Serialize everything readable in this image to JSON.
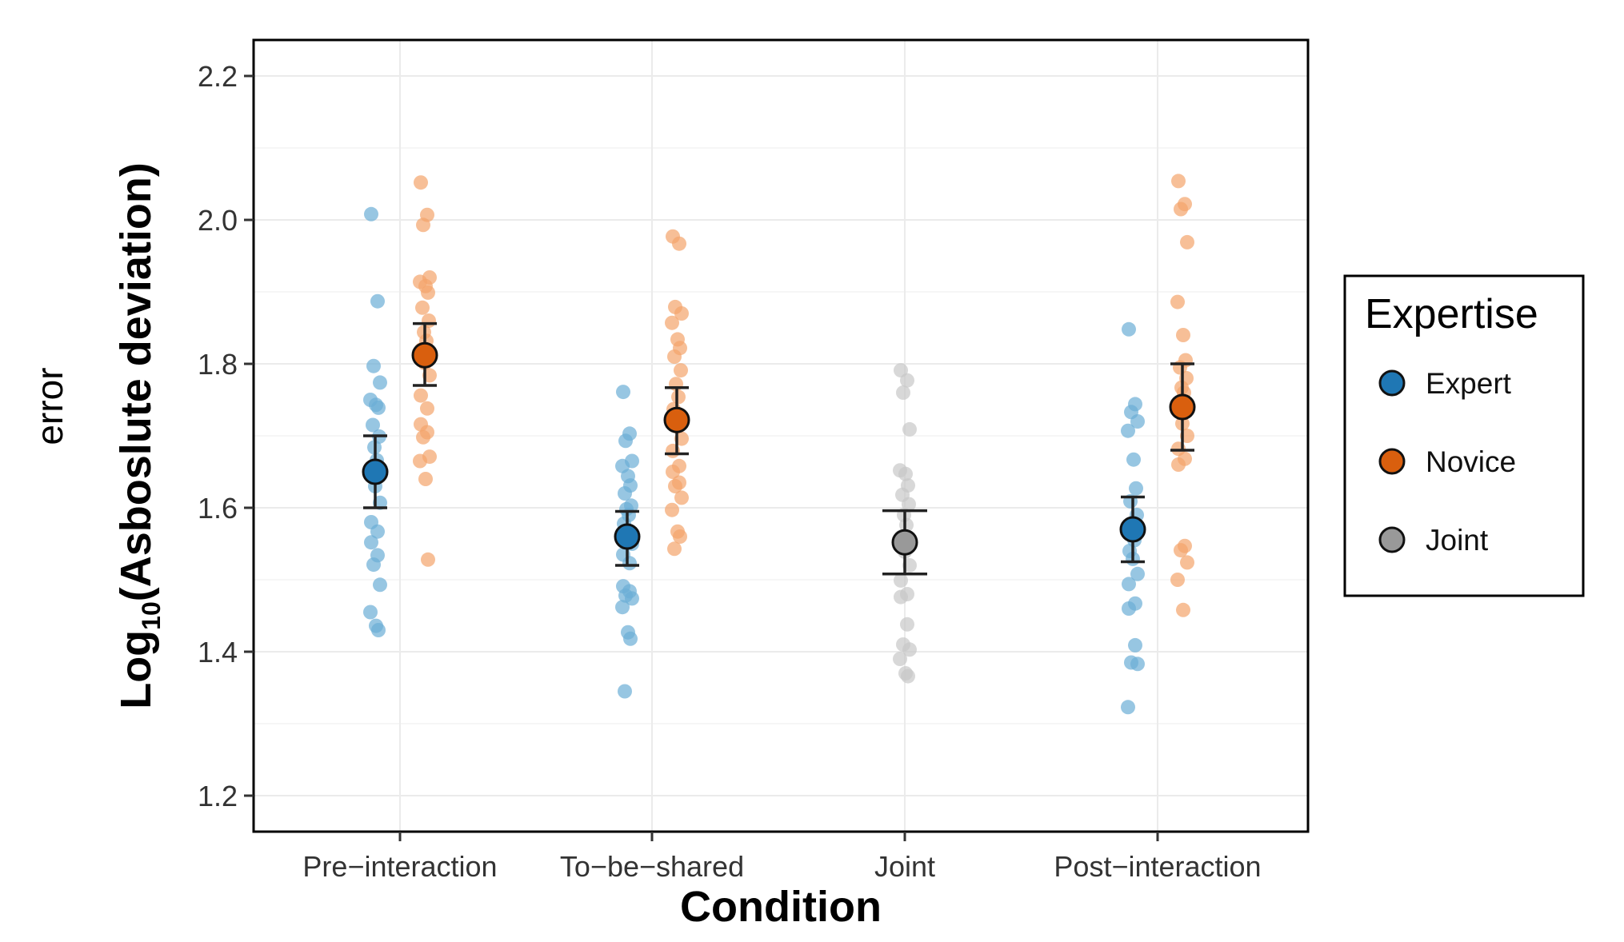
{
  "chart_data": {
    "type": "scatter",
    "outer_label": "error",
    "ylabel_main": "Log",
    "ylabel_sub": "10",
    "ylabel_rest": "(Asboslute deviation)",
    "xlabel": "Condition",
    "ylim": [
      1.15,
      2.25
    ],
    "yticks": [
      1.2,
      1.4,
      1.6,
      1.8,
      2.0,
      2.2
    ],
    "ytick_labels": [
      "1.2",
      "1.4",
      "1.6",
      "1.8",
      "2.0",
      "2.2"
    ],
    "categories": [
      "Pre−interaction",
      "To−be−shared",
      "Joint",
      "Post−interaction"
    ],
    "grid": true,
    "legend": {
      "title": "Expertise",
      "position": "right",
      "items": [
        {
          "label": "Expert",
          "color": "#1f77b4"
        },
        {
          "label": "Novice",
          "color": "#d95f0e"
        },
        {
          "label": "Joint",
          "color": "#999999"
        }
      ]
    },
    "series": [
      {
        "name": "Expert",
        "color": "#1f77b4",
        "point_color": "#6baed6",
        "summary": [
          {
            "category": 0,
            "mean": 1.65,
            "lower": 1.6,
            "upper": 1.7
          },
          {
            "category": 1,
            "mean": 1.56,
            "lower": 1.52,
            "upper": 1.595
          },
          {
            "category": 3,
            "mean": 1.57,
            "lower": 1.525,
            "upper": 1.615
          }
        ],
        "points": [
          {
            "category": 0,
            "values": [
              2.008,
              1.887,
              1.797,
              1.774,
              1.75,
              1.743,
              1.739,
              1.715,
              1.699,
              1.684,
              1.666,
              1.65,
              1.63,
              1.607,
              1.58,
              1.567,
              1.552,
              1.534,
              1.521,
              1.493,
              1.455,
              1.436,
              1.43
            ]
          },
          {
            "category": 1,
            "values": [
              1.761,
              1.703,
              1.693,
              1.665,
              1.658,
              1.644,
              1.631,
              1.62,
              1.603,
              1.598,
              1.59,
              1.578,
              1.56,
              1.55,
              1.535,
              1.523,
              1.491,
              1.484,
              1.478,
              1.474,
              1.462,
              1.427,
              1.418,
              1.345
            ]
          },
          {
            "category": 3,
            "values": [
              1.848,
              1.744,
              1.733,
              1.72,
              1.707,
              1.667,
              1.627,
              1.609,
              1.59,
              1.575,
              1.555,
              1.54,
              1.529,
              1.508,
              1.494,
              1.467,
              1.46,
              1.409,
              1.385,
              1.383,
              1.323
            ]
          }
        ]
      },
      {
        "name": "Novice",
        "color": "#d95f0e",
        "point_color": "#f4a46b",
        "summary": [
          {
            "category": 0,
            "mean": 1.812,
            "lower": 1.77,
            "upper": 1.856
          },
          {
            "category": 1,
            "mean": 1.722,
            "lower": 1.675,
            "upper": 1.767
          },
          {
            "category": 3,
            "mean": 1.74,
            "lower": 1.68,
            "upper": 1.8
          }
        ],
        "points": [
          {
            "category": 0,
            "values": [
              2.052,
              2.007,
              1.993,
              1.92,
              1.914,
              1.908,
              1.899,
              1.878,
              1.86,
              1.844,
              1.832,
              1.82,
              1.801,
              1.784,
              1.756,
              1.738,
              1.716,
              1.705,
              1.698,
              1.671,
              1.665,
              1.64,
              1.528
            ]
          },
          {
            "category": 1,
            "values": [
              1.977,
              1.967,
              1.879,
              1.87,
              1.857,
              1.834,
              1.822,
              1.81,
              1.791,
              1.772,
              1.754,
              1.737,
              1.713,
              1.696,
              1.679,
              1.658,
              1.65,
              1.635,
              1.63,
              1.614,
              1.597,
              1.567,
              1.56,
              1.543
            ]
          },
          {
            "category": 3,
            "values": [
              2.054,
              2.022,
              2.015,
              1.969,
              1.886,
              1.84,
              1.805,
              1.795,
              1.78,
              1.767,
              1.76,
              1.742,
              1.717,
              1.7,
              1.682,
              1.668,
              1.66,
              1.547,
              1.541,
              1.524,
              1.5,
              1.458
            ]
          }
        ]
      },
      {
        "name": "Joint",
        "color": "#999999",
        "point_color": "#c8c8c8",
        "summary": [
          {
            "category": 2,
            "mean": 1.552,
            "lower": 1.508,
            "upper": 1.596
          }
        ],
        "points": [
          {
            "category": 2,
            "values": [
              1.791,
              1.777,
              1.76,
              1.709,
              1.652,
              1.647,
              1.631,
              1.618,
              1.605,
              1.59,
              1.576,
              1.56,
              1.539,
              1.52,
              1.499,
              1.48,
              1.476,
              1.438,
              1.41,
              1.403,
              1.39,
              1.37,
              1.366
            ]
          }
        ]
      }
    ]
  }
}
